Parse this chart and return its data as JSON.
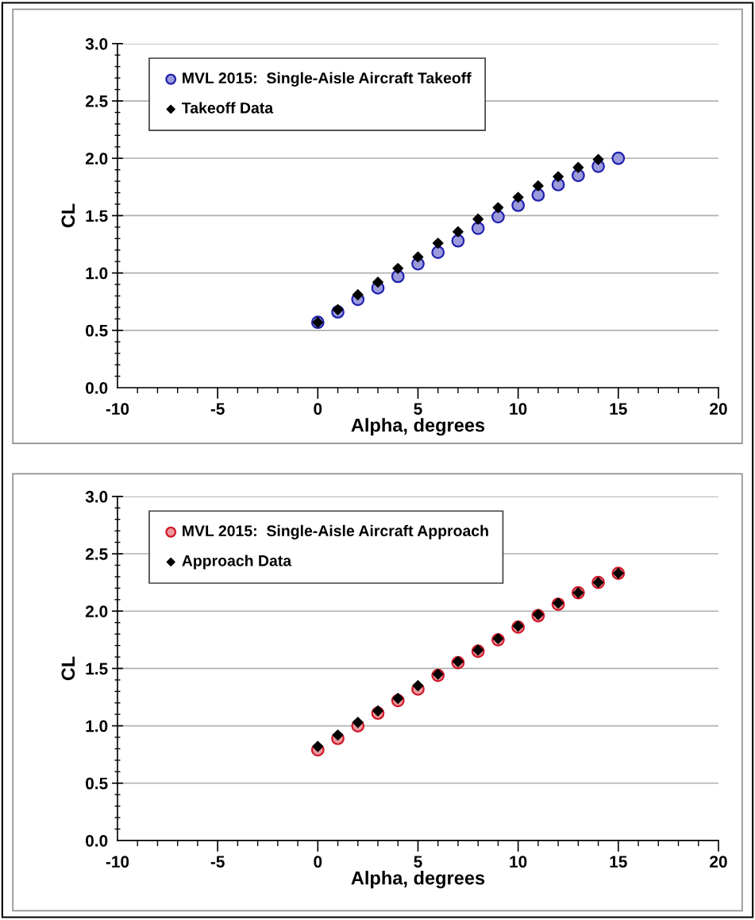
{
  "chart_data": [
    {
      "type": "scatter",
      "xlabel": "Alpha, degrees",
      "ylabel": "CL",
      "xlim": [
        -10,
        20
      ],
      "ylim": [
        0,
        3.0
      ],
      "xticks": [
        -10,
        -5,
        0,
        5,
        10,
        15,
        20
      ],
      "yticks": [
        {
          "value": 0,
          "label": "0.0"
        },
        {
          "value": 0.5,
          "label": "0.5"
        },
        {
          "value": 1.0,
          "label": "1.0"
        },
        {
          "value": 1.5,
          "label": "1.5"
        },
        {
          "value": 2.0,
          "label": "2.0"
        },
        {
          "value": 2.5,
          "label": "2.5"
        },
        {
          "value": 3.0,
          "label": "3.0"
        }
      ],
      "grid": "y",
      "legend": "top left",
      "series": [
        {
          "name": "MVL 2015:  Single-Aisle Aircraft Takeoff",
          "marker": "circle",
          "color": "#2020b0",
          "x": [
            0,
            1,
            2,
            3,
            4,
            5,
            6,
            7,
            8,
            9,
            10,
            11,
            12,
            13,
            14,
            15
          ],
          "values": [
            0.57,
            0.66,
            0.77,
            0.87,
            0.97,
            1.08,
            1.18,
            1.28,
            1.39,
            1.49,
            1.59,
            1.68,
            1.77,
            1.85,
            1.93,
            2.0
          ]
        },
        {
          "name": "Takeoff Data",
          "marker": "diamond",
          "color": "#000000",
          "x": [
            0,
            1,
            2,
            3,
            4,
            5,
            6,
            7,
            8,
            9,
            10,
            11,
            12,
            13,
            14
          ],
          "values": [
            0.57,
            0.68,
            0.81,
            0.92,
            1.04,
            1.14,
            1.26,
            1.36,
            1.47,
            1.57,
            1.66,
            1.76,
            1.84,
            1.92,
            1.99
          ]
        }
      ]
    },
    {
      "type": "scatter",
      "xlabel": "Alpha, degrees",
      "ylabel": "CL",
      "xlim": [
        -10,
        20
      ],
      "ylim": [
        0,
        3.0
      ],
      "xticks": [
        -10,
        -5,
        0,
        5,
        10,
        15,
        20
      ],
      "yticks": [
        {
          "value": 0,
          "label": "0.0"
        },
        {
          "value": 0.5,
          "label": "0.5"
        },
        {
          "value": 1.0,
          "label": "1.0"
        },
        {
          "value": 1.5,
          "label": "1.5"
        },
        {
          "value": 2.0,
          "label": "2.0"
        },
        {
          "value": 2.5,
          "label": "2.5"
        },
        {
          "value": 3.0,
          "label": "3.0"
        }
      ],
      "grid": "y",
      "legend": "top left",
      "series": [
        {
          "name": "MVL 2015:  Single-Aisle Aircraft Approach",
          "marker": "circle",
          "color": "#d01828",
          "x": [
            0,
            1,
            2,
            3,
            4,
            5,
            6,
            7,
            8,
            9,
            10,
            11,
            12,
            13,
            14,
            15
          ],
          "values": [
            0.79,
            0.89,
            1.0,
            1.11,
            1.22,
            1.32,
            1.44,
            1.55,
            1.65,
            1.75,
            1.86,
            1.96,
            2.06,
            2.16,
            2.25,
            2.33
          ]
        },
        {
          "name": "Approach Data",
          "marker": "diamond",
          "color": "#000000",
          "x": [
            0,
            1,
            2,
            3,
            4,
            5,
            6,
            7,
            8,
            9,
            10,
            11,
            12,
            13,
            14,
            15
          ],
          "values": [
            0.82,
            0.92,
            1.03,
            1.13,
            1.24,
            1.35,
            1.45,
            1.56,
            1.66,
            1.76,
            1.87,
            1.97,
            2.07,
            2.16,
            2.25,
            2.33
          ]
        }
      ]
    }
  ]
}
